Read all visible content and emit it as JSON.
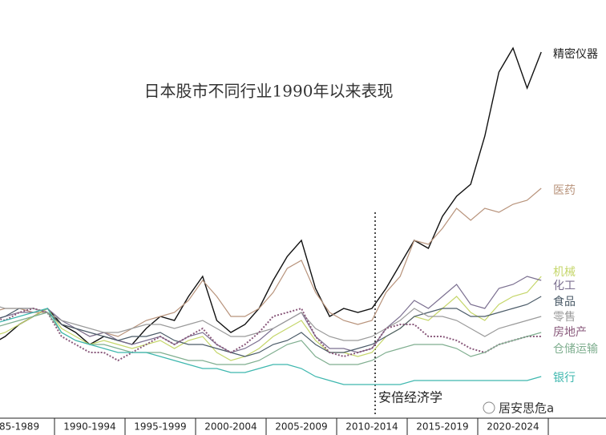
{
  "chart_data": {
    "type": "line",
    "title": "日本股市不同行业1990年以来表现",
    "annotation": "安倍经济学",
    "watermark": "居安思危a",
    "categories": [
      null,
      null,
      "85-1989",
      null,
      null,
      null,
      null,
      "1990-1994",
      null,
      null,
      null,
      null,
      "1995-1999",
      null,
      null,
      null,
      null,
      "2000-2004",
      null,
      null,
      null,
      null,
      "2005-2009",
      null,
      null,
      null,
      null,
      "2010-2014",
      null,
      null,
      null,
      null,
      "2015-2019",
      null,
      null,
      null,
      null,
      "2020-2024",
      null,
      null
    ],
    "ylim": [
      0,
      100
    ],
    "grid": false,
    "series": [
      {
        "name": "精密仪器",
        "color": "#111111",
        "values": [
          18,
          20,
          23,
          25,
          27,
          23,
          21,
          18,
          20,
          19,
          18,
          22,
          25,
          24,
          30,
          35,
          24,
          21,
          23,
          27,
          34,
          40,
          44,
          32,
          25,
          27,
          26,
          27,
          32,
          38,
          44,
          42,
          50,
          55,
          58,
          70,
          86,
          92,
          82,
          91
        ]
      },
      {
        "name": "医药",
        "color": "#b8937b",
        "values": [
          26,
          27,
          27,
          26,
          26,
          23,
          22,
          20,
          21,
          20,
          22,
          24,
          25,
          26,
          29,
          34,
          30,
          25,
          25,
          27,
          31,
          37,
          39,
          31,
          26,
          24,
          23,
          24,
          31,
          35,
          44,
          43,
          47,
          52,
          49,
          52,
          51,
          53,
          54,
          57
        ]
      },
      {
        "name": "机械",
        "color": "#c5d66a",
        "values": [
          20,
          21,
          23,
          25,
          27,
          22,
          20,
          18,
          19,
          18,
          17,
          18,
          19,
          17,
          19,
          20,
          16,
          14,
          15,
          17,
          20,
          22,
          24,
          19,
          16,
          16,
          15,
          16,
          20,
          22,
          25,
          24,
          27,
          30,
          26,
          24,
          28,
          30,
          31,
          35
        ]
      },
      {
        "name": "化工",
        "color": "#7b6f90",
        "values": [
          24,
          25,
          26,
          26,
          27,
          24,
          22,
          20,
          21,
          19,
          18,
          19,
          20,
          18,
          20,
          21,
          18,
          16,
          17,
          19,
          22,
          24,
          26,
          20,
          17,
          17,
          16,
          17,
          22,
          25,
          29,
          27,
          30,
          33,
          28,
          27,
          32,
          33,
          35,
          34
        ]
      },
      {
        "name": "食品",
        "color": "#4b5b68",
        "values": [
          24,
          25,
          27,
          27,
          26,
          23,
          22,
          21,
          20,
          19,
          20,
          20,
          21,
          19,
          18,
          18,
          17,
          16,
          15,
          16,
          18,
          19,
          21,
          18,
          16,
          16,
          17,
          18,
          20,
          22,
          25,
          26,
          27,
          27,
          25,
          25,
          26,
          27,
          28,
          30
        ]
      },
      {
        "name": "零售",
        "color": "#9a9a9a",
        "values": [
          28,
          27,
          27,
          27,
          26,
          24,
          23,
          22,
          21,
          21,
          22,
          23,
          23,
          22,
          23,
          24,
          22,
          20,
          20,
          21,
          22,
          24,
          26,
          22,
          20,
          19,
          19,
          20,
          22,
          24,
          27,
          25,
          25,
          24,
          22,
          20,
          22,
          23,
          24,
          25
        ]
      },
      {
        "name": "房地产",
        "color": "#8a5a7c",
        "style": "dotted",
        "values": [
          25,
          24,
          26,
          27,
          26,
          20,
          18,
          16,
          16,
          14,
          16,
          18,
          20,
          18,
          20,
          22,
          18,
          16,
          18,
          21,
          25,
          26,
          27,
          20,
          16,
          15,
          16,
          17,
          22,
          23,
          23,
          20,
          20,
          19,
          17,
          16,
          18,
          19,
          20,
          20
        ]
      },
      {
        "name": "仓储运输",
        "color": "#7fae8f",
        "values": [
          22,
          23,
          24,
          25,
          26,
          21,
          19,
          18,
          18,
          17,
          16,
          16,
          16,
          15,
          14,
          14,
          13,
          13,
          13,
          14,
          16,
          18,
          19,
          15,
          13,
          13,
          13,
          14,
          16,
          17,
          18,
          18,
          18,
          17,
          15,
          16,
          18,
          19,
          20,
          21
        ]
      },
      {
        "name": "银行",
        "color": "#3db7ae",
        "values": [
          23,
          24,
          25,
          26,
          27,
          21,
          19,
          18,
          17,
          16,
          16,
          16,
          15,
          14,
          13,
          12,
          12,
          11,
          11,
          12,
          13,
          13,
          12,
          10,
          9,
          8,
          8,
          8,
          8,
          8,
          9,
          9,
          9,
          9,
          9,
          9,
          9,
          9,
          9,
          10
        ]
      }
    ]
  }
}
